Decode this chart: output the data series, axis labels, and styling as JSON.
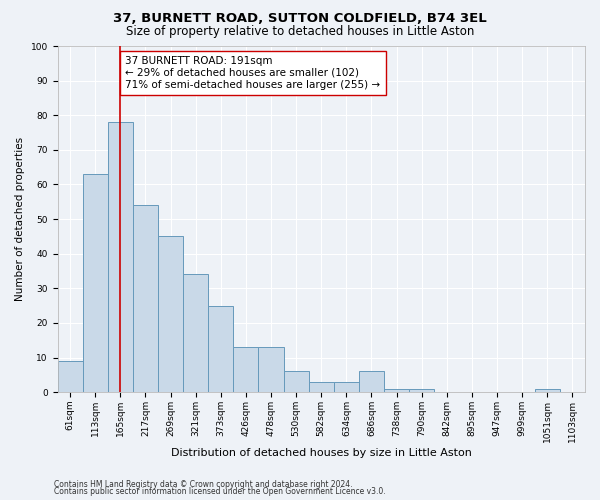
{
  "title": "37, BURNETT ROAD, SUTTON COLDFIELD, B74 3EL",
  "subtitle": "Size of property relative to detached houses in Little Aston",
  "xlabel": "Distribution of detached houses by size in Little Aston",
  "ylabel": "Number of detached properties",
  "footnote1": "Contains HM Land Registry data © Crown copyright and database right 2024.",
  "footnote2": "Contains public sector information licensed under the Open Government Licence v3.0.",
  "bin_labels": [
    "61sqm",
    "113sqm",
    "165sqm",
    "217sqm",
    "269sqm",
    "321sqm",
    "373sqm",
    "426sqm",
    "478sqm",
    "530sqm",
    "582sqm",
    "634sqm",
    "686sqm",
    "738sqm",
    "790sqm",
    "842sqm",
    "895sqm",
    "947sqm",
    "999sqm",
    "1051sqm",
    "1103sqm"
  ],
  "bar_values": [
    9,
    63,
    78,
    54,
    45,
    34,
    25,
    13,
    13,
    6,
    3,
    3,
    6,
    1,
    1,
    0,
    0,
    0,
    0,
    1,
    0
  ],
  "bar_color": "#c9d9e8",
  "bar_edge_color": "#6699bb",
  "ylim": [
    0,
    100
  ],
  "yticks": [
    0,
    10,
    20,
    30,
    40,
    50,
    60,
    70,
    80,
    90,
    100
  ],
  "property_bin_index": 2,
  "vline_color": "#cc0000",
  "annotation_text": "37 BURNETT ROAD: 191sqm\n← 29% of detached houses are smaller (102)\n71% of semi-detached houses are larger (255) →",
  "annotation_box_color": "#ffffff",
  "annotation_box_edgecolor": "#cc0000",
  "background_color": "#eef2f7",
  "grid_color": "#ffffff",
  "title_fontsize": 9.5,
  "subtitle_fontsize": 8.5,
  "ylabel_fontsize": 7.5,
  "xlabel_fontsize": 8.0,
  "tick_fontsize": 6.5,
  "annotation_fontsize": 7.5,
  "footnote_fontsize": 5.5
}
